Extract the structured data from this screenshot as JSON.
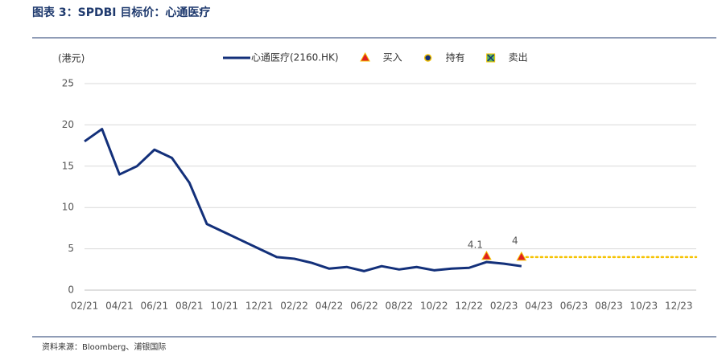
{
  "title": "图表 3：SPDBI 目标价：心通医疗",
  "source": "资料来源：Bloomberg、浦银国际",
  "chart_data": {
    "type": "line",
    "y_label": "(港元)",
    "xlim": [
      "02/21",
      "01/24"
    ],
    "xticks": [
      "02/21",
      "04/21",
      "06/21",
      "08/21",
      "10/21",
      "12/21",
      "02/22",
      "04/22",
      "06/22",
      "08/22",
      "10/22",
      "12/22",
      "02/23",
      "04/23",
      "06/23",
      "08/23",
      "10/23",
      "12/23"
    ],
    "ylim": [
      0,
      25
    ],
    "yticks": [
      0,
      5,
      10,
      15,
      20,
      25
    ],
    "grid": true,
    "series": [
      {
        "name": "心通医疗(2160.HK)",
        "color": "#13307a",
        "style": "line",
        "x": [
          "02/21",
          "03/21",
          "04/21",
          "05/21",
          "06/21",
          "07/21",
          "08/21",
          "09/21",
          "10/21",
          "11/21",
          "12/21",
          "01/22",
          "02/22",
          "03/22",
          "04/22",
          "05/22",
          "06/22",
          "07/22",
          "08/22",
          "09/22",
          "10/22",
          "11/22",
          "12/22",
          "01/23",
          "02/23",
          "03/23"
        ],
        "values": [
          18,
          19.5,
          14,
          15,
          17,
          16,
          13,
          8,
          7,
          6,
          5,
          4,
          3.8,
          3.3,
          2.6,
          2.8,
          2.3,
          2.9,
          2.5,
          2.8,
          2.4,
          2.6,
          2.7,
          3.4,
          3.2,
          2.9
        ]
      },
      {
        "name": "买入",
        "color": "#e02020",
        "marker": "triangle",
        "target_line_color": "#f5c200",
        "x": [
          "01/23",
          "03/23"
        ],
        "values": [
          4.1,
          4.0
        ]
      },
      {
        "name": "持有",
        "color": "#13307a",
        "marker": "circle",
        "x": [],
        "values": []
      },
      {
        "name": "卖出",
        "color": "#5cb85c",
        "marker": "cross",
        "x": [],
        "values": []
      }
    ]
  }
}
